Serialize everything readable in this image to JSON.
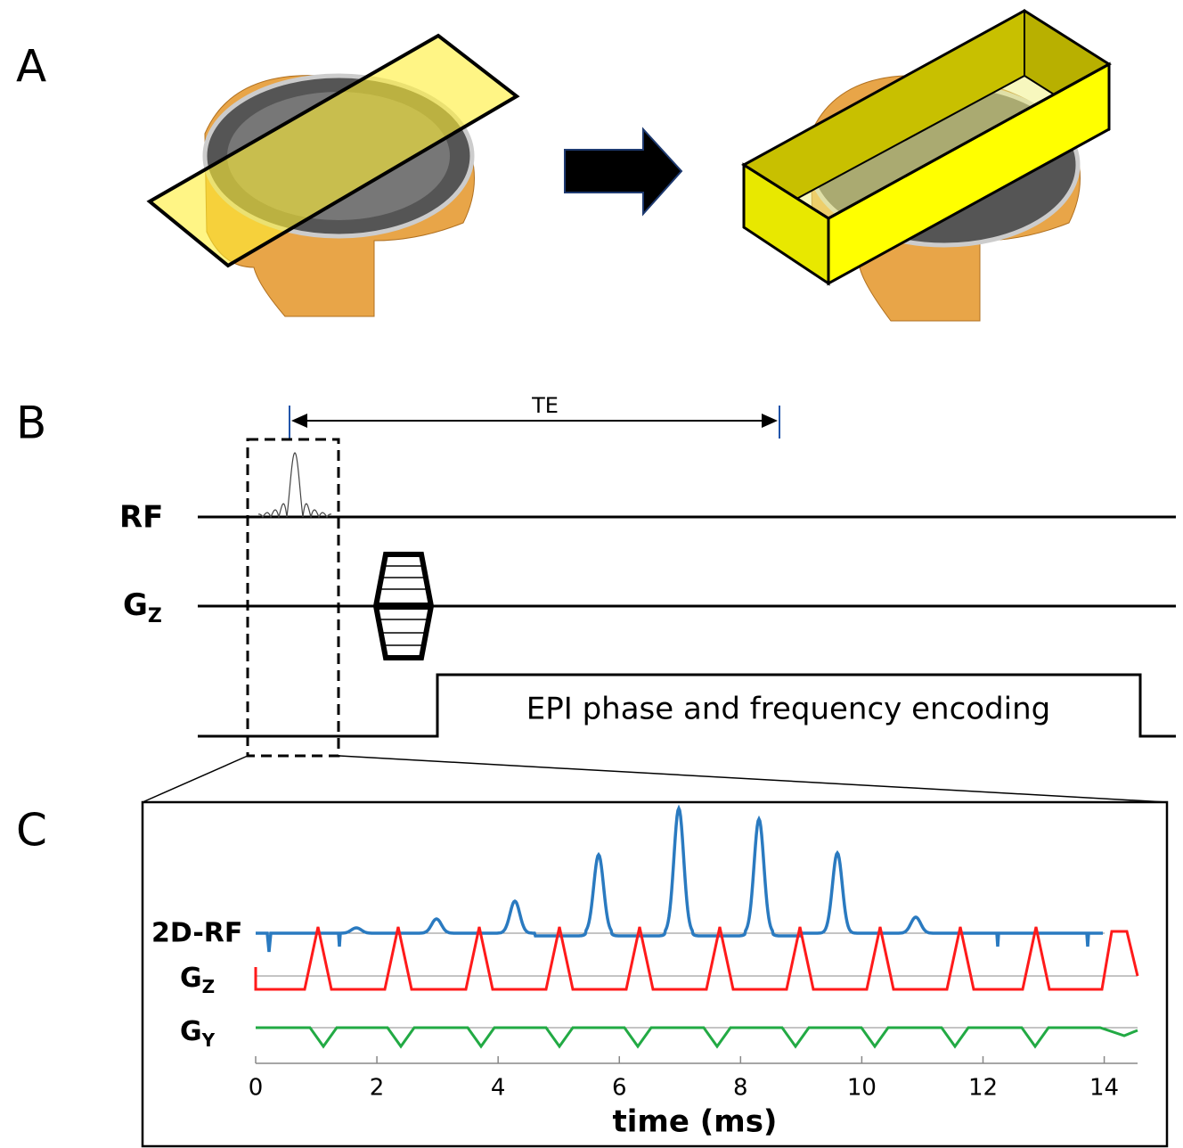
{
  "panel_a": {
    "label": "A"
  },
  "panel_b": {
    "label": "B",
    "te": "TE",
    "rf": "RF",
    "gz": {
      "main": "G",
      "sub": "Z"
    },
    "epi": "EPI phase and frequency encoding"
  },
  "panel_c": {
    "label": "C",
    "rows": [
      {
        "main": "2D-RF"
      },
      {
        "main": "G",
        "sub": "Z"
      },
      {
        "main": "G",
        "sub": "Y"
      }
    ],
    "xlim": [
      0,
      14.55
    ],
    "xticks": [
      0,
      2,
      4,
      6,
      8,
      10,
      12,
      14
    ],
    "xlabel": "time (ms)"
  }
}
